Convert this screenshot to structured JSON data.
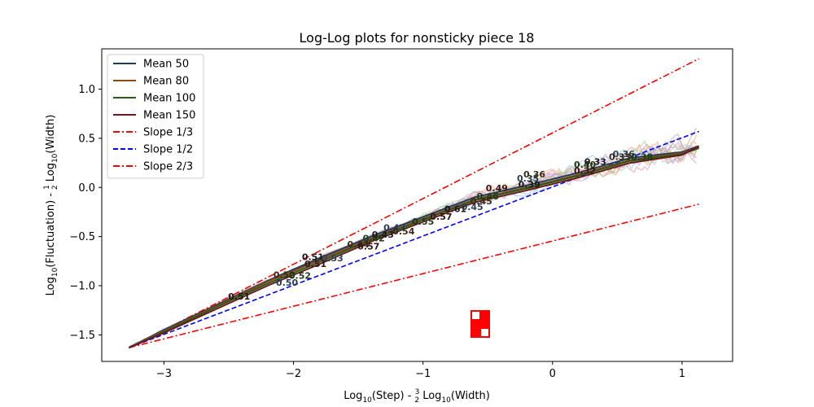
{
  "chart_data": {
    "type": "line",
    "title": "Log-Log plots for nonsticky piece 18",
    "xlabel": {
      "pre": "Log",
      "sub1": "10",
      "mid": "(Step) - ",
      "frac_num": "3",
      "frac_den": "2",
      "post": " Log",
      "sub2": "10",
      "end": "(Width)"
    },
    "ylabel": {
      "pre": "Log",
      "sub1": "10",
      "mid": "(Fluctuation) - ",
      "frac_num": "1",
      "frac_den": "2",
      "post": " Log",
      "sub2": "10",
      "end": "(Width)"
    },
    "xlim": [
      -3.48,
      1.39
    ],
    "ylim": [
      -1.77,
      1.41
    ],
    "xticks": [
      {
        "v": -3,
        "label": "−3"
      },
      {
        "v": -2,
        "label": "−2"
      },
      {
        "v": -1,
        "label": "−1"
      },
      {
        "v": 0,
        "label": "0"
      },
      {
        "v": 1,
        "label": "1"
      }
    ],
    "yticks": [
      {
        "v": -1.5,
        "label": "−1.5"
      },
      {
        "v": -1.0,
        "label": "−1.0"
      },
      {
        "v": -0.5,
        "label": "−0.5"
      },
      {
        "v": 0.0,
        "label": "0.0"
      },
      {
        "v": 0.5,
        "label": "0.5"
      },
      {
        "v": 1.0,
        "label": "1.0"
      }
    ],
    "legend_position": "top-left",
    "series": [
      {
        "name": "Mean 50",
        "color": "#1f3b5a",
        "style": "solid",
        "x": [
          -3.27,
          -3.0,
          -2.6,
          -2.2,
          -1.8,
          -1.4,
          -1.0,
          -0.6,
          -0.2,
          0.2,
          0.6,
          1.0,
          1.13
        ],
        "y": [
          -1.63,
          -1.45,
          -1.2,
          -0.95,
          -0.72,
          -0.5,
          -0.3,
          -0.1,
          0.02,
          0.15,
          0.3,
          0.36,
          0.42
        ]
      },
      {
        "name": "Mean 80",
        "color": "#8b4a12",
        "style": "solid",
        "x": [
          -3.27,
          -3.0,
          -2.6,
          -2.2,
          -1.8,
          -1.4,
          -1.0,
          -0.6,
          -0.2,
          0.2,
          0.6,
          1.0,
          1.13
        ],
        "y": [
          -1.63,
          -1.46,
          -1.21,
          -0.96,
          -0.74,
          -0.52,
          -0.32,
          -0.12,
          0.0,
          0.13,
          0.28,
          0.35,
          0.41
        ]
      },
      {
        "name": "Mean 100",
        "color": "#2a5a1a",
        "style": "solid",
        "x": [
          -3.27,
          -3.0,
          -2.6,
          -2.2,
          -1.8,
          -1.4,
          -1.0,
          -0.6,
          -0.2,
          0.2,
          0.6,
          1.0,
          1.13
        ],
        "y": [
          -1.63,
          -1.47,
          -1.22,
          -0.98,
          -0.76,
          -0.53,
          -0.33,
          -0.13,
          -0.01,
          0.12,
          0.27,
          0.34,
          0.4
        ]
      },
      {
        "name": "Mean 150",
        "color": "#6a1a1a",
        "style": "solid",
        "x": [
          -3.27,
          -3.0,
          -2.6,
          -2.2,
          -1.8,
          -1.4,
          -1.0,
          -0.6,
          -0.2,
          0.2,
          0.6,
          1.0,
          1.13
        ],
        "y": [
          -1.63,
          -1.48,
          -1.24,
          -1.0,
          -0.78,
          -0.55,
          -0.35,
          -0.15,
          -0.03,
          0.1,
          0.25,
          0.33,
          0.42
        ]
      },
      {
        "name": "Slope 1/3",
        "color": "#ff0000",
        "style": "dashdot",
        "x": [
          -3.27,
          1.13
        ],
        "y": [
          -1.63,
          -0.17
        ]
      },
      {
        "name": "Slope 1/2",
        "color": "#0000ff",
        "style": "dashed",
        "x": [
          -3.27,
          1.13
        ],
        "y": [
          -1.63,
          0.57
        ]
      },
      {
        "name": "Slope 2/3",
        "color": "#ff0000",
        "style": "dashdot",
        "x": [
          -3.27,
          1.13
        ],
        "y": [
          -1.63,
          1.31
        ]
      }
    ],
    "segment_labels": [
      {
        "x": -2.42,
        "y": -1.14,
        "text": "0.51"
      },
      {
        "x": -2.05,
        "y": -1.0,
        "text": "0.50"
      },
      {
        "x": -2.07,
        "y": -0.92,
        "text": "0.50"
      },
      {
        "x": -1.95,
        "y": -0.93,
        "text": "0.52"
      },
      {
        "x": -1.83,
        "y": -0.81,
        "text": "0.51"
      },
      {
        "x": -1.85,
        "y": -0.74,
        "text": "0.51"
      },
      {
        "x": -1.7,
        "y": -0.75,
        "text": "0.53"
      },
      {
        "x": -1.5,
        "y": -0.61,
        "text": "0.44"
      },
      {
        "x": -1.38,
        "y": -0.55,
        "text": "0.42"
      },
      {
        "x": -1.42,
        "y": -0.63,
        "text": "0.57"
      },
      {
        "x": -1.31,
        "y": -0.51,
        "text": "0.43"
      },
      {
        "x": -1.22,
        "y": -0.44,
        "text": "0.47"
      },
      {
        "x": -1.15,
        "y": -0.48,
        "text": "0.54"
      },
      {
        "x": -1.0,
        "y": -0.38,
        "text": "0.55"
      },
      {
        "x": -0.86,
        "y": -0.33,
        "text": "0.57"
      },
      {
        "x": -0.75,
        "y": -0.25,
        "text": "0.61"
      },
      {
        "x": -0.62,
        "y": -0.23,
        "text": "0.45"
      },
      {
        "x": -0.55,
        "y": -0.17,
        "text": "0.45"
      },
      {
        "x": -0.5,
        "y": -0.12,
        "text": "0.46"
      },
      {
        "x": -0.43,
        "y": -0.04,
        "text": "0.49"
      },
      {
        "x": -0.18,
        "y": 0.0,
        "text": "0.39"
      },
      {
        "x": -0.19,
        "y": 0.06,
        "text": "0.35"
      },
      {
        "x": -0.14,
        "y": 0.1,
        "text": "0.36"
      },
      {
        "x": 0.25,
        "y": 0.2,
        "text": "0.40"
      },
      {
        "x": 0.25,
        "y": 0.14,
        "text": "0.32"
      },
      {
        "x": 0.33,
        "y": 0.23,
        "text": "0.33"
      },
      {
        "x": 0.55,
        "y": 0.31,
        "text": "0.36"
      },
      {
        "x": 0.52,
        "y": 0.28,
        "text": "0.33"
      },
      {
        "x": 0.69,
        "y": 0.28,
        "text": "0.38"
      }
    ]
  }
}
